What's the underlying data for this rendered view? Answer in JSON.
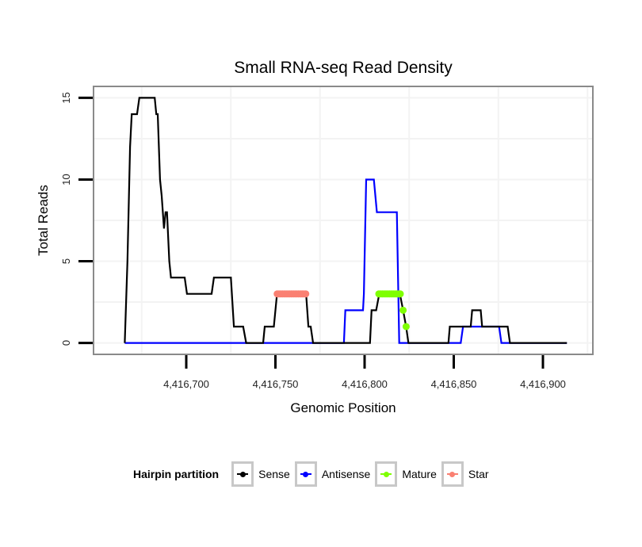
{
  "chart_data": {
    "type": "line",
    "title": "Small RNA-seq Read Density",
    "xlabel": "Genomic Position",
    "ylabel": "Total Reads",
    "xlim": [
      4416648,
      4416928
    ],
    "ylim": [
      -0.7,
      15.7
    ],
    "x_ticks": [
      4416700,
      4416750,
      4416800,
      4416850,
      4416900
    ],
    "x_tick_labels": [
      "4,416,700",
      "4,416,750",
      "4,416,800",
      "4,416,850",
      "4,416,900"
    ],
    "x_grid": [
      4416675,
      4416725,
      4416775,
      4416825,
      4416875,
      4416925
    ],
    "y_ticks": [
      0,
      5,
      10,
      15
    ],
    "y_tick_labels": [
      "0",
      "5",
      "10",
      "15"
    ],
    "y_grid_minor": [
      2.5,
      7.5,
      12.5
    ],
    "grid": true,
    "legend_position": "bottom",
    "legend_title": "Hairpin partition",
    "series": [
      {
        "name": "Sense",
        "color": "#000000",
        "kind": "line",
        "points": [
          [
            4416665.5,
            0
          ],
          [
            4416667,
            5
          ],
          [
            4416668.5,
            12
          ],
          [
            4416669.4,
            14
          ],
          [
            4416672.4,
            14
          ],
          [
            4416673.7,
            15
          ],
          [
            4416682.3,
            15
          ],
          [
            4416683.2,
            14
          ],
          [
            4416684,
            14
          ],
          [
            4416685.3,
            10
          ],
          [
            4416686.2,
            9
          ],
          [
            4416687.5,
            7
          ],
          [
            4416688.4,
            8
          ],
          [
            4416689.2,
            8
          ],
          [
            4416690.5,
            5
          ],
          [
            4416691.4,
            4
          ],
          [
            4416699.1,
            4
          ],
          [
            4416700.4,
            3
          ],
          [
            4416714.2,
            3
          ],
          [
            4416715.5,
            4
          ],
          [
            4416725,
            4
          ],
          [
            4416726.7,
            1
          ],
          [
            4416731.9,
            1
          ],
          [
            4416733.6,
            0
          ],
          [
            4416743.1,
            0
          ],
          [
            4416744,
            1
          ],
          [
            4416749.1,
            1
          ],
          [
            4416750.9,
            3
          ],
          [
            4416767.2,
            3
          ],
          [
            4416768.5,
            1
          ],
          [
            4416769.8,
            1
          ],
          [
            4416771.1,
            0
          ],
          [
            4416803,
            0
          ],
          [
            4416803.9,
            2
          ],
          [
            4416806.5,
            2
          ],
          [
            4416808.2,
            3
          ],
          [
            4416819.8,
            3
          ],
          [
            4416821.6,
            2
          ],
          [
            4416823.3,
            1
          ],
          [
            4416824.6,
            0
          ],
          [
            4416847,
            0
          ],
          [
            4416847.8,
            1
          ],
          [
            4416859.5,
            1
          ],
          [
            4416860.3,
            2
          ],
          [
            4416865.1,
            2
          ],
          [
            4416865.9,
            1
          ],
          [
            4416880.2,
            1
          ],
          [
            4416881.5,
            0
          ],
          [
            4416913.4,
            0
          ]
        ]
      },
      {
        "name": "Antisense",
        "color": "#0000ff",
        "kind": "line",
        "points": [
          [
            4416665.5,
            0
          ],
          [
            4416788.4,
            0
          ],
          [
            4416789.2,
            2
          ],
          [
            4416799.1,
            2
          ],
          [
            4416799.6,
            3
          ],
          [
            4416800.9,
            10
          ],
          [
            4416805.2,
            10
          ],
          [
            4416806.9,
            8
          ],
          [
            4416818.1,
            8
          ],
          [
            4416819.4,
            0
          ],
          [
            4416853.9,
            0
          ],
          [
            4416855.2,
            1
          ],
          [
            4416875.4,
            1
          ],
          [
            4416876.7,
            0
          ],
          [
            4416913.4,
            0
          ]
        ]
      },
      {
        "name": "Mature",
        "color": "#7fff00",
        "kind": "points",
        "points": [
          [
            4416808,
            3
          ],
          [
            4416809,
            3
          ],
          [
            4416810,
            3
          ],
          [
            4416811,
            3
          ],
          [
            4416812,
            3
          ],
          [
            4416813,
            3
          ],
          [
            4416814,
            3
          ],
          [
            4416815,
            3
          ],
          [
            4416816,
            3
          ],
          [
            4416817,
            3
          ],
          [
            4416818,
            3
          ],
          [
            4416819,
            3
          ],
          [
            4416820,
            3
          ],
          [
            4416821.6,
            2
          ],
          [
            4416823.3,
            1
          ]
        ]
      },
      {
        "name": "Star",
        "color": "#fa8072",
        "kind": "points",
        "points": [
          [
            4416751,
            3
          ],
          [
            4416752,
            3
          ],
          [
            4416753,
            3
          ],
          [
            4416754,
            3
          ],
          [
            4416755,
            3
          ],
          [
            4416756,
            3
          ],
          [
            4416757,
            3
          ],
          [
            4416758,
            3
          ],
          [
            4416759,
            3
          ],
          [
            4416760,
            3
          ],
          [
            4416761,
            3
          ],
          [
            4416762,
            3
          ],
          [
            4416763,
            3
          ],
          [
            4416764,
            3
          ],
          [
            4416765,
            3
          ],
          [
            4416766,
            3
          ],
          [
            4416767,
            3
          ]
        ]
      }
    ]
  }
}
